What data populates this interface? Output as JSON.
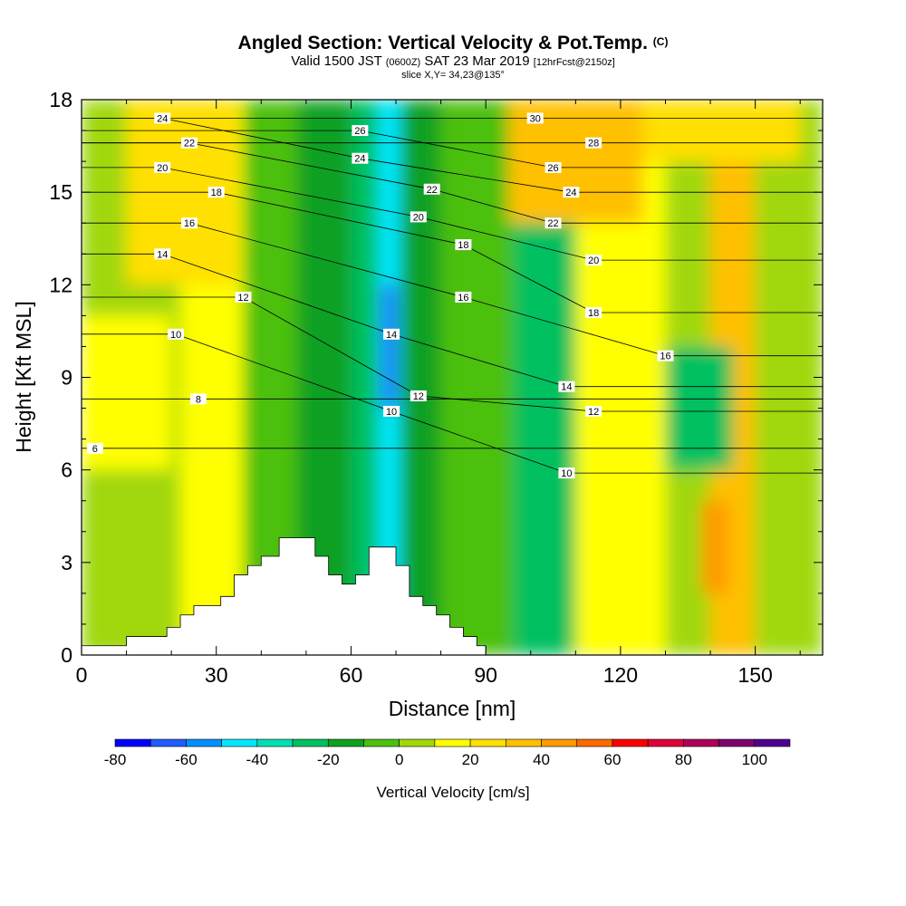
{
  "header": {
    "title": "Angled Section: Vertical Velocity & Pot.Temp.",
    "title_unit": "(C)",
    "valid_prefix": "Valid 1500 JST",
    "valid_utc": "(0600Z)",
    "valid_date": "SAT 23 Mar 2019",
    "forecast_info": "[12hrFcst@2150z]",
    "slice_info": "slice X,Y= 34,23@135°"
  },
  "chart_data": {
    "type": "heatmap",
    "title": "Angled Section: Vertical Velocity & Pot.Temp. (C)",
    "xlabel": "Distance [nm]",
    "ylabel": "Height [Kft MSL]",
    "xlim": [
      0,
      165
    ],
    "ylim": [
      0,
      18
    ],
    "x_ticks": [
      0,
      30,
      60,
      90,
      120,
      150
    ],
    "y_ticks": [
      0,
      3,
      6,
      9,
      12,
      15,
      18
    ],
    "grid": false,
    "colorbar": {
      "label": "Vertical Velocity [cm/s]",
      "min": -80,
      "max": 110,
      "step": 10,
      "tick_labels": [
        -80,
        -60,
        -40,
        -20,
        0,
        20,
        40,
        60,
        80,
        100
      ],
      "colors": [
        "#0000ff",
        "#1e5cff",
        "#0090ff",
        "#00e8ff",
        "#00e0b0",
        "#00c060",
        "#10a020",
        "#4cc010",
        "#a0d80a",
        "#ffff00",
        "#ffe000",
        "#ffc000",
        "#ff9a00",
        "#ff6a00",
        "#ff0000",
        "#e0003a",
        "#b0005a",
        "#800070",
        "#500090"
      ]
    },
    "vertical_velocity_cells": [
      {
        "x": [
          0,
          22
        ],
        "y": [
          0,
          18
        ],
        "value": 5
      },
      {
        "x": [
          22,
          36
        ],
        "y": [
          0,
          18
        ],
        "value": 15
      },
      {
        "x": [
          36,
          48
        ],
        "y": [
          0,
          18
        ],
        "value": -5
      },
      {
        "x": [
          48,
          60
        ],
        "y": [
          0,
          18
        ],
        "value": -15
      },
      {
        "x": [
          60,
          66
        ],
        "y": [
          0,
          18
        ],
        "value": -25
      },
      {
        "x": [
          66,
          71
        ],
        "y": [
          0,
          18
        ],
        "value": -45
      },
      {
        "x": [
          71,
          80
        ],
        "y": [
          0,
          18
        ],
        "value": -15
      },
      {
        "x": [
          80,
          96
        ],
        "y": [
          0,
          18
        ],
        "value": -5
      },
      {
        "x": [
          96,
          110
        ],
        "y": [
          0,
          18
        ],
        "value": -30
      },
      {
        "x": [
          110,
          130
        ],
        "y": [
          0,
          18
        ],
        "value": 10
      },
      {
        "x": [
          130,
          140
        ],
        "y": [
          0,
          18
        ],
        "value": 0
      },
      {
        "x": [
          140,
          150
        ],
        "y": [
          0,
          18
        ],
        "value": 30
      },
      {
        "x": [
          150,
          165
        ],
        "y": [
          0,
          18
        ],
        "value": 5
      },
      {
        "x": [
          10,
          35
        ],
        "y": [
          12,
          18
        ],
        "value": 25
      },
      {
        "x": [
          95,
          125
        ],
        "y": [
          14,
          18
        ],
        "value": 30
      },
      {
        "x": [
          125,
          160
        ],
        "y": [
          16,
          18
        ],
        "value": 25
      },
      {
        "x": [
          0,
          20
        ],
        "y": [
          6,
          11
        ],
        "value": 15
      },
      {
        "x": [
          67,
          70
        ],
        "y": [
          8,
          12
        ],
        "value": -70
      },
      {
        "x": [
          68,
          70
        ],
        "y": [
          1,
          4
        ],
        "value": -50
      },
      {
        "x": [
          130,
          145
        ],
        "y": [
          6,
          10
        ],
        "value": -25
      },
      {
        "x": [
          138,
          144
        ],
        "y": [
          2,
          5
        ],
        "value": 40
      }
    ],
    "terrain_profile": {
      "x": [
        0,
        10,
        19,
        22,
        25,
        31,
        34,
        37,
        40,
        44,
        46,
        50,
        52,
        55,
        58,
        61,
        64,
        67,
        70,
        73,
        76,
        79,
        82,
        85,
        88,
        90,
        165
      ],
      "height": [
        0.3,
        0.6,
        0.9,
        1.3,
        1.6,
        1.9,
        2.6,
        2.9,
        3.2,
        3.8,
        3.8,
        3.8,
        3.2,
        2.6,
        2.3,
        2.6,
        3.5,
        3.5,
        2.9,
        1.9,
        1.6,
        1.3,
        0.9,
        0.6,
        0.3,
        0,
        0
      ]
    },
    "potential_temperature_contours": [
      {
        "value": 6,
        "label_at": [
          3,
          6.7
        ]
      },
      {
        "value": 8,
        "label_at": [
          26,
          8.3
        ]
      },
      {
        "value": 10,
        "label_at": [
          21,
          10.4
        ]
      },
      {
        "value": 10,
        "label_at": [
          69,
          7.9
        ]
      },
      {
        "value": 10,
        "label_at": [
          108,
          5.9
        ]
      },
      {
        "value": 12,
        "label_at": [
          36,
          11.6
        ]
      },
      {
        "value": 12,
        "label_at": [
          75,
          8.4
        ]
      },
      {
        "value": 12,
        "label_at": [
          114,
          7.9
        ]
      },
      {
        "value": 14,
        "label_at": [
          18,
          13.0
        ]
      },
      {
        "value": 14,
        "label_at": [
          69,
          10.4
        ]
      },
      {
        "value": 14,
        "label_at": [
          108,
          8.7
        ]
      },
      {
        "value": 16,
        "label_at": [
          24,
          14.0
        ]
      },
      {
        "value": 16,
        "label_at": [
          85,
          11.6
        ]
      },
      {
        "value": 16,
        "label_at": [
          130,
          9.7
        ]
      },
      {
        "value": 18,
        "label_at": [
          30,
          15.0
        ]
      },
      {
        "value": 18,
        "label_at": [
          85,
          13.3
        ]
      },
      {
        "value": 18,
        "label_at": [
          114,
          11.1
        ]
      },
      {
        "value": 20,
        "label_at": [
          18,
          15.8
        ]
      },
      {
        "value": 20,
        "label_at": [
          75,
          14.2
        ]
      },
      {
        "value": 20,
        "label_at": [
          114,
          12.8
        ]
      },
      {
        "value": 22,
        "label_at": [
          24,
          16.6
        ]
      },
      {
        "value": 22,
        "label_at": [
          78,
          15.1
        ]
      },
      {
        "value": 22,
        "label_at": [
          105,
          14.0
        ]
      },
      {
        "value": 24,
        "label_at": [
          18,
          17.4
        ]
      },
      {
        "value": 24,
        "label_at": [
          62,
          16.1
        ]
      },
      {
        "value": 24,
        "label_at": [
          109,
          15.0
        ]
      },
      {
        "value": 26,
        "label_at": [
          62,
          17.0
        ]
      },
      {
        "value": 26,
        "label_at": [
          105,
          15.8
        ]
      },
      {
        "value": 28,
        "label_at": [
          114,
          16.6
        ]
      },
      {
        "value": 30,
        "label_at": [
          101,
          17.4
        ]
      }
    ]
  }
}
